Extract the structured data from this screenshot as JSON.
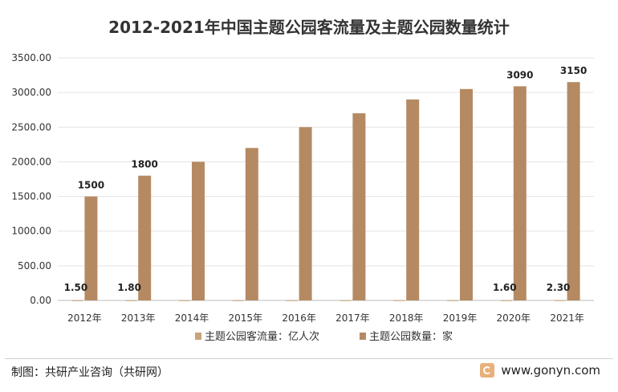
{
  "chart_data": {
    "type": "bar",
    "title": "2012-2021年中国主题公园客流量及主题公园数量统计",
    "categories": [
      "2012年",
      "2013年",
      "2014年",
      "2015年",
      "2016年",
      "2017年",
      "2018年",
      "2019年",
      "2020年",
      "2021年"
    ],
    "series": [
      {
        "name": "主题公园客流量：亿人次",
        "values": [
          1.5,
          1.8,
          1.9,
          2.0,
          2.1,
          2.2,
          2.3,
          2.4,
          1.6,
          2.3
        ],
        "color": "#c8a47a",
        "labels": [
          "1.50",
          "1.80",
          "",
          "",
          "",
          "",
          "",
          "",
          "1.60",
          "2.30"
        ]
      },
      {
        "name": "主题公园数量：家",
        "values": [
          1500,
          1800,
          2000,
          2200,
          2500,
          2700,
          2900,
          3050,
          3090,
          3150
        ],
        "color": "#b58a62",
        "labels": [
          "1500",
          "1800",
          "",
          "",
          "",
          "",
          "",
          "",
          "3090",
          "3150"
        ]
      }
    ],
    "y_ticks": [
      "0.00",
      "500.00",
      "1000.00",
      "1500.00",
      "2000.00",
      "2500.00",
      "3000.00",
      "3500.00"
    ],
    "ylim": [
      0,
      3500
    ],
    "grid": true,
    "legend": "bottom"
  },
  "footer": {
    "source": "制图：共研产业咨询（共研网）",
    "site": "www.gonyn.com"
  }
}
